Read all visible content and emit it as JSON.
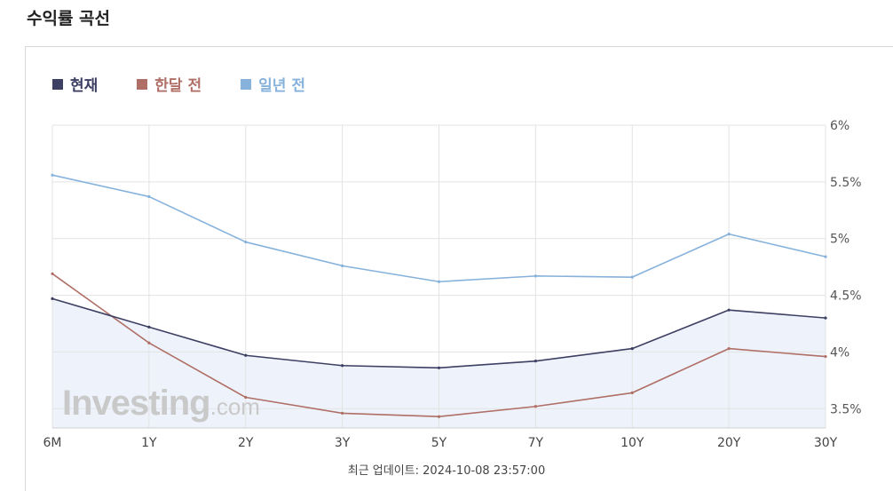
{
  "page": {
    "title": "수익률 곡선"
  },
  "watermark": {
    "brand": "Investing",
    "domain": ".com"
  },
  "footer": {
    "updated_text": "최근 업데이트: 2024-10-08 23:57:00"
  },
  "chart_data": {
    "type": "line",
    "title": "",
    "xlabel": "",
    "ylabel": "",
    "categories": [
      "6M",
      "1Y",
      "2Y",
      "3Y",
      "5Y",
      "7Y",
      "10Y",
      "20Y",
      "30Y"
    ],
    "y_ticks": [
      "6%",
      "5.5%",
      "5%",
      "4.5%",
      "4%",
      "3.5%"
    ],
    "ylim": [
      3.33,
      6.0
    ],
    "grid": true,
    "legend_position": "top-left",
    "series": [
      {
        "name": "현재",
        "color": "#3d3f63",
        "area_fill": "#eef3fb",
        "values": [
          4.47,
          4.22,
          3.97,
          3.88,
          3.86,
          3.92,
          4.03,
          4.37,
          4.3
        ]
      },
      {
        "name": "한달 전",
        "color": "#b06f66",
        "values": [
          4.69,
          4.08,
          3.6,
          3.46,
          3.43,
          3.52,
          3.64,
          4.03,
          3.96
        ]
      },
      {
        "name": "일년 전",
        "color": "#86b2dc",
        "values": [
          5.56,
          5.37,
          4.97,
          4.76,
          4.62,
          4.67,
          4.66,
          5.04,
          4.84
        ]
      }
    ]
  }
}
